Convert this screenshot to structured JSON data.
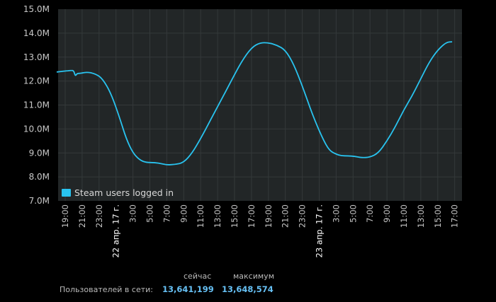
{
  "chart_data": {
    "type": "line",
    "y_labels": [
      "15.0M",
      "14.0M",
      "13.0M",
      "12.0M",
      "11.0M",
      "10.0M",
      "9.0M",
      "8.0M",
      "7.0M"
    ],
    "ylim": [
      7.0,
      15.0
    ],
    "x_labels": [
      {
        "label": "19:00",
        "day": false
      },
      {
        "label": "21:00",
        "day": false
      },
      {
        "label": "23:00",
        "day": false
      },
      {
        "label": "22 апр. 17 г.",
        "day": true
      },
      {
        "label": "3:00",
        "day": false
      },
      {
        "label": "5:00",
        "day": false
      },
      {
        "label": "7:00",
        "day": false
      },
      {
        "label": "9:00",
        "day": false
      },
      {
        "label": "11:00",
        "day": false
      },
      {
        "label": "13:00",
        "day": false
      },
      {
        "label": "15:00",
        "day": false
      },
      {
        "label": "17:00",
        "day": false
      },
      {
        "label": "19:00",
        "day": false
      },
      {
        "label": "21:00",
        "day": false
      },
      {
        "label": "23:00",
        "day": false
      },
      {
        "label": "23 апр. 17 г.",
        "day": true
      },
      {
        "label": "3:00",
        "day": false
      },
      {
        "label": "5:00",
        "day": false
      },
      {
        "label": "7:00",
        "day": false
      },
      {
        "label": "9:00",
        "day": false
      },
      {
        "label": "11:00",
        "day": false
      },
      {
        "label": "13:00",
        "day": false
      },
      {
        "label": "15:00",
        "day": false
      },
      {
        "label": "17:00",
        "day": false
      }
    ],
    "series": [
      {
        "name": "Steam users logged in",
        "color": "#29c3ef",
        "points": [
          [
            -0.5,
            12.38
          ],
          [
            0,
            12.42
          ],
          [
            0.3,
            12.44
          ],
          [
            0.5,
            12.45
          ],
          [
            0.6,
            12.2
          ],
          [
            0.7,
            12.32
          ],
          [
            0.9,
            12.32
          ],
          [
            1.3,
            12.38
          ],
          [
            1.8,
            12.3
          ],
          [
            2.2,
            12.1
          ],
          [
            2.7,
            11.5
          ],
          [
            3.2,
            10.5
          ],
          [
            3.6,
            9.6
          ],
          [
            4.0,
            9.0
          ],
          [
            4.4,
            8.7
          ],
          [
            4.8,
            8.6
          ],
          [
            5.3,
            8.6
          ],
          [
            5.7,
            8.55
          ],
          [
            6.0,
            8.5
          ],
          [
            6.5,
            8.52
          ],
          [
            7.0,
            8.6
          ],
          [
            7.5,
            9.0
          ],
          [
            8.0,
            9.6
          ],
          [
            8.6,
            10.4
          ],
          [
            9.2,
            11.2
          ],
          [
            9.8,
            12.0
          ],
          [
            10.4,
            12.8
          ],
          [
            11.0,
            13.4
          ],
          [
            11.5,
            13.6
          ],
          [
            12.0,
            13.6
          ],
          [
            12.5,
            13.5
          ],
          [
            13.0,
            13.3
          ],
          [
            13.5,
            12.7
          ],
          [
            14.0,
            11.8
          ],
          [
            14.6,
            10.6
          ],
          [
            15.2,
            9.6
          ],
          [
            15.6,
            9.1
          ],
          [
            16.0,
            8.95
          ],
          [
            16.3,
            8.88
          ],
          [
            16.7,
            8.88
          ],
          [
            17.1,
            8.86
          ],
          [
            17.5,
            8.8
          ],
          [
            18.0,
            8.82
          ],
          [
            18.5,
            9.0
          ],
          [
            19.0,
            9.5
          ],
          [
            19.5,
            10.1
          ],
          [
            20.0,
            10.8
          ],
          [
            20.5,
            11.4
          ],
          [
            21.0,
            12.1
          ],
          [
            21.5,
            12.8
          ],
          [
            22.0,
            13.3
          ],
          [
            22.5,
            13.62
          ],
          [
            22.85,
            13.64
          ]
        ]
      }
    ],
    "legend": "bottom-left",
    "grid": true
  },
  "stats": {
    "header_now": "сейчас",
    "header_max": "максимум",
    "label": "Пользователей в сети:",
    "now_value": "13,641,199",
    "max_value": "13,648,574"
  },
  "colors": {
    "plot_bg": "#222627",
    "grid": "#34393a",
    "line": "#29c3ef",
    "accent": "#66c0f4"
  }
}
